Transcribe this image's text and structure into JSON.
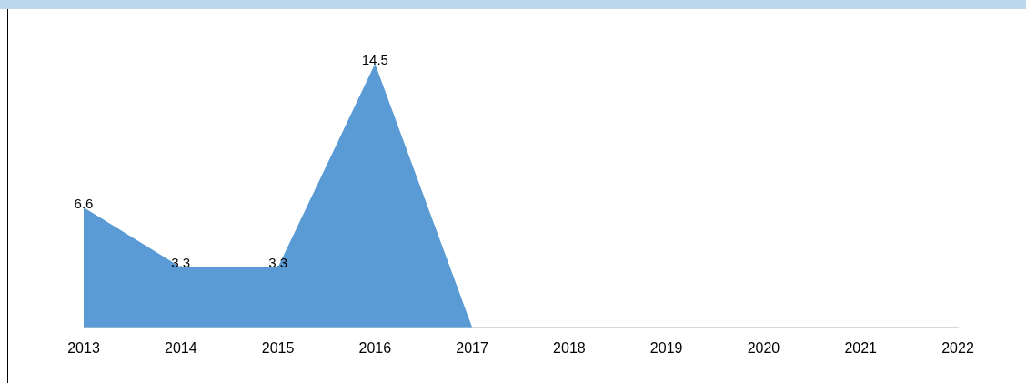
{
  "chart_data": {
    "type": "area",
    "categories": [
      "2013",
      "2014",
      "2015",
      "2016",
      "2017",
      "2018",
      "2019",
      "2020",
      "2021",
      "2022"
    ],
    "series": [
      {
        "color": "#5b9bd5",
        "values": [
          6.6,
          3.3,
          3.3,
          14.5,
          0,
          null,
          null,
          null,
          null,
          null
        ],
        "value_labels": [
          "6.6",
          "3.3",
          "3.3",
          "14.5",
          null,
          null,
          null,
          null,
          null,
          null
        ]
      }
    ],
    "grid": false,
    "legend": false,
    "tick_labels": "x"
  }
}
